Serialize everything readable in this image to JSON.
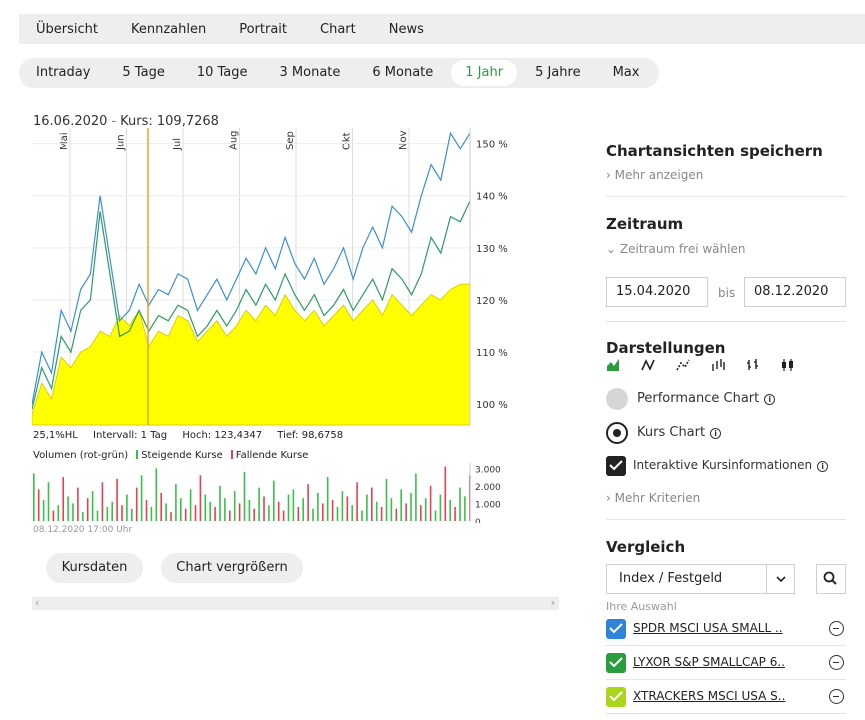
{
  "topnav": [
    "Übersicht",
    "Kennzahlen",
    "Portrait",
    "Chart",
    "News"
  ],
  "ranges": {
    "items": [
      "Intraday",
      "5 Tage",
      "10 Tage",
      "3 Monate",
      "6 Monate",
      "1 Jahr",
      "5 Jahre",
      "Max"
    ],
    "active": "1 Jahr"
  },
  "chart_info": {
    "date": "16.06.2020",
    "separator": "-",
    "price_label": "Kurs: 109,7268"
  },
  "chart_data": [
    {
      "type": "area",
      "months": [
        "Mai",
        "Jun",
        "Jul",
        "Aug",
        "Sep",
        "Okt",
        "Nov"
      ],
      "y_ticks": [
        "150 %",
        "140 %",
        "130 %",
        "120 %",
        "110 %",
        "100 %"
      ],
      "ylim": [
        96,
        153
      ],
      "cursor_date": "16.06.2020",
      "series": [
        {
          "name": "Kurs",
          "style": "yellow-area",
          "color": "#ffff00",
          "values": [
            98,
            104,
            101,
            109,
            107,
            110,
            111,
            114,
            113,
            117,
            115,
            118,
            111,
            114,
            113,
            117,
            116,
            112,
            114,
            116,
            113,
            115,
            118,
            116,
            119,
            117,
            121,
            118,
            116,
            118,
            115,
            117,
            119,
            116,
            118,
            120,
            117,
            121,
            119,
            117,
            119,
            121,
            120,
            122,
            123,
            123
          ]
        },
        {
          "color": "#2a9d5f",
          "values": [
            99,
            107,
            103,
            113,
            110,
            118,
            120,
            137,
            125,
            113,
            114,
            118,
            114,
            117,
            116,
            119,
            118,
            113,
            115,
            118,
            115,
            118,
            122,
            119,
            123,
            120,
            125,
            121,
            118,
            121,
            117,
            119,
            122,
            118,
            121,
            124,
            120,
            126,
            124,
            121,
            125,
            132,
            129,
            136,
            135,
            139
          ]
        },
        {
          "color": "#3a8fd6",
          "values": [
            100,
            110,
            106,
            118,
            114,
            122,
            125,
            140,
            128,
            116,
            118,
            123,
            119,
            122,
            121,
            125,
            124,
            118,
            121,
            124,
            120,
            124,
            128,
            125,
            130,
            126,
            132,
            127,
            124,
            128,
            123,
            126,
            130,
            124,
            130,
            134,
            130,
            138,
            136,
            133,
            140,
            146,
            143,
            152,
            149,
            152
          ]
        }
      ]
    },
    {
      "type": "bar",
      "title": "Volumen (rot-grün)",
      "legend": [
        "Steigende Kurse",
        "Fallende Kurse"
      ],
      "y_ticks": [
        "3.000",
        "2.000",
        "1.000",
        "0"
      ],
      "ylim": [
        0,
        3300
      ],
      "direction": [
        "u",
        "d",
        "u",
        "u",
        "d",
        "u",
        "d",
        "u",
        "u",
        "d",
        "u",
        "d",
        "u",
        "u",
        "d",
        "u",
        "u",
        "d",
        "d",
        "u",
        "u",
        "d",
        "u",
        "d",
        "u",
        "u",
        "d",
        "u",
        "d",
        "u",
        "u",
        "d",
        "u",
        "d",
        "d",
        "u",
        "u",
        "d",
        "u",
        "u",
        "d",
        "u",
        "d",
        "u",
        "u",
        "d",
        "u",
        "d",
        "u",
        "u",
        "d",
        "d",
        "u",
        "u",
        "d",
        "u",
        "d",
        "u",
        "u",
        "d",
        "u",
        "d",
        "u",
        "u",
        "d",
        "u",
        "d",
        "u",
        "u",
        "d",
        "u",
        "d",
        "u",
        "u",
        "d",
        "u",
        "d",
        "u",
        "u",
        "d",
        "u",
        "d",
        "u",
        "u",
        "d",
        "u",
        "d",
        "u",
        "u",
        "d"
      ],
      "values": [
        2700,
        1800,
        1200,
        2200,
        600,
        900,
        2500,
        1400,
        1000,
        1900,
        500,
        1300,
        1700,
        600,
        2200,
        800,
        1100,
        2400,
        900,
        1500,
        700,
        1900,
        2600,
        1200,
        800,
        3000,
        1600,
        1000,
        500,
        2100,
        1300,
        700,
        1800,
        900,
        2600,
        1500,
        1100,
        800,
        2000,
        1300,
        600,
        1700,
        1000,
        2800,
        1200,
        700,
        1900,
        1400,
        900,
        2300,
        1100,
        600,
        1500,
        1800,
        800,
        1300,
        2100,
        700,
        1600,
        1000,
        2500,
        1200,
        800,
        1700,
        1400,
        900,
        2200,
        600,
        1500,
        1900,
        1100,
        800,
        2400,
        1300,
        700,
        1800,
        1000,
        1600,
        2700,
        900,
        1300,
        2000,
        600,
        1500,
        3100,
        1200,
        800,
        1900,
        1400,
        2600
      ]
    }
  ],
  "chart_stats": {
    "hl": "25,1%HL",
    "interval": "Intervall: 1 Tag",
    "high": "Hoch: 123,4347",
    "low": "Tief: 98,6758"
  },
  "volume_date": "08.12.2020 17:00 Uhr",
  "buttons": {
    "kursdaten": "Kursdaten",
    "enlarge": "Chart vergrößern"
  },
  "sidebar": {
    "save_title": "Chartansichten speichern",
    "more": "Mehr anzeigen",
    "period_title": "Zeitraum",
    "period_free": "Zeitraum frei wählen",
    "date_from": "15.04.2020",
    "bis": "bis",
    "date_to": "08.12.2020",
    "display_title": "Darstellungen",
    "display_icons": [
      "area-chart-icon",
      "line-chart-icon",
      "dotted-line-icon",
      "ohlc-bars-icon",
      "hlc-bars-icon",
      "candlestick-icon"
    ],
    "opt_perf": "Performance Chart",
    "opt_kurs": "Kurs Chart",
    "opt_interactive": "Interaktive Kursinformationen",
    "more_criteria": "Mehr Kriterien",
    "compare_title": "Vergleich",
    "select_value": "Index / Festgeld",
    "your_selection": "Ihre Auswahl",
    "compare": [
      {
        "name": "SPDR MSCI USA SMALL ..",
        "color": "#2f83d8"
      },
      {
        "name": "LYXOR S&P SMALLCAP 6..",
        "color": "#2a9d3f"
      },
      {
        "name": "XTRACKERS MSCI USA S..",
        "color": "#a8d61e"
      }
    ]
  },
  "colors": {
    "accent": "#2a9d3f",
    "cursor": "#f0a030",
    "area": "#ffff00",
    "up": "#38c048",
    "down": "#e84050"
  }
}
